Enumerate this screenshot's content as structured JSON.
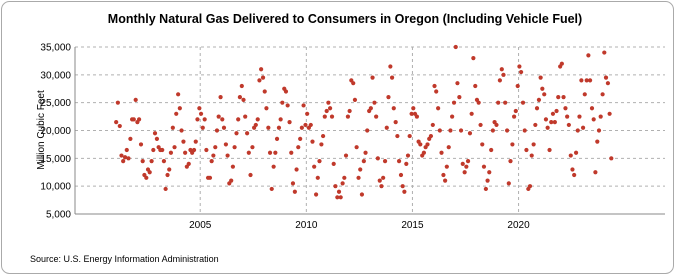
{
  "chart_data": {
    "type": "scatter",
    "title": "Monthly Natural Gas Delivered to Consumers in Oregon (Including Vehicle Fuel)",
    "y_label": "Million Cubic Feet",
    "source": "Source: U.S. Energy Information Administration",
    "color": "#c0392b",
    "grid": true,
    "xlim": [
      1999.1,
      2026.9
    ],
    "xticks": [
      2005,
      2010,
      2015,
      2020
    ],
    "ylim": [
      5000,
      35000
    ],
    "yticks": [
      {
        "value": 5000,
        "label": "5,000"
      },
      {
        "value": 10000,
        "label": "10,000"
      },
      {
        "value": 15000,
        "label": "15,000"
      },
      {
        "value": 20000,
        "label": "20,000"
      },
      {
        "value": 25000,
        "label": "25,000"
      },
      {
        "value": 30000,
        "label": "30,000"
      },
      {
        "value": 35000,
        "label": "35,000"
      }
    ],
    "x": [
      2001.04,
      2001.12,
      2001.21,
      2001.29,
      2001.37,
      2001.46,
      2001.54,
      2001.62,
      2001.71,
      2001.79,
      2001.87,
      2001.96,
      2002.04,
      2002.12,
      2002.21,
      2002.29,
      2002.37,
      2002.46,
      2002.54,
      2002.62,
      2002.71,
      2002.79,
      2002.87,
      2002.96,
      2003.04,
      2003.12,
      2003.21,
      2003.29,
      2003.37,
      2003.46,
      2003.54,
      2003.62,
      2003.71,
      2003.79,
      2003.87,
      2003.96,
      2004.04,
      2004.12,
      2004.21,
      2004.29,
      2004.37,
      2004.46,
      2004.54,
      2004.62,
      2004.71,
      2004.79,
      2004.87,
      2004.96,
      2005.04,
      2005.12,
      2005.21,
      2005.29,
      2005.37,
      2005.46,
      2005.54,
      2005.62,
      2005.71,
      2005.79,
      2005.87,
      2005.96,
      2006.04,
      2006.12,
      2006.21,
      2006.29,
      2006.37,
      2006.46,
      2006.54,
      2006.62,
      2006.71,
      2006.79,
      2006.87,
      2006.96,
      2007.04,
      2007.12,
      2007.21,
      2007.29,
      2007.37,
      2007.46,
      2007.54,
      2007.62,
      2007.71,
      2007.79,
      2007.87,
      2007.96,
      2008.04,
      2008.12,
      2008.21,
      2008.29,
      2008.37,
      2008.46,
      2008.54,
      2008.62,
      2008.71,
      2008.79,
      2008.87,
      2008.96,
      2009.04,
      2009.12,
      2009.21,
      2009.29,
      2009.37,
      2009.46,
      2009.54,
      2009.62,
      2009.71,
      2009.79,
      2009.87,
      2009.96,
      2010.04,
      2010.12,
      2010.21,
      2010.29,
      2010.37,
      2010.46,
      2010.54,
      2010.62,
      2010.71,
      2010.79,
      2010.87,
      2010.96,
      2011.04,
      2011.12,
      2011.21,
      2011.29,
      2011.37,
      2011.46,
      2011.54,
      2011.62,
      2011.71,
      2011.79,
      2011.87,
      2011.96,
      2012.04,
      2012.12,
      2012.21,
      2012.29,
      2012.37,
      2012.46,
      2012.54,
      2012.62,
      2012.71,
      2012.79,
      2012.87,
      2012.96,
      2013.04,
      2013.12,
      2013.21,
      2013.29,
      2013.37,
      2013.46,
      2013.54,
      2013.62,
      2013.71,
      2013.79,
      2013.87,
      2013.96,
      2014.04,
      2014.12,
      2014.21,
      2014.29,
      2014.37,
      2014.46,
      2014.54,
      2014.62,
      2014.71,
      2014.79,
      2014.87,
      2014.96,
      2015.04,
      2015.12,
      2015.21,
      2015.29,
      2015.37,
      2015.46,
      2015.54,
      2015.62,
      2015.71,
      2015.79,
      2015.87,
      2015.96,
      2016.04,
      2016.12,
      2016.21,
      2016.29,
      2016.37,
      2016.46,
      2016.54,
      2016.62,
      2016.71,
      2016.79,
      2016.87,
      2016.96,
      2017.04,
      2017.12,
      2017.21,
      2017.29,
      2017.37,
      2017.46,
      2017.54,
      2017.62,
      2017.71,
      2017.79,
      2017.87,
      2017.96,
      2018.04,
      2018.12,
      2018.21,
      2018.29,
      2018.37,
      2018.46,
      2018.54,
      2018.62,
      2018.71,
      2018.79,
      2018.87,
      2018.96,
      2019.04,
      2019.12,
      2019.21,
      2019.29,
      2019.37,
      2019.46,
      2019.54,
      2019.62,
      2019.71,
      2019.79,
      2019.87,
      2019.96,
      2020.04,
      2020.12,
      2020.21,
      2020.29,
      2020.37,
      2020.46,
      2020.54,
      2020.62,
      2020.71,
      2020.79,
      2020.87,
      2020.96,
      2021.04,
      2021.12,
      2021.21,
      2021.29,
      2021.37,
      2021.46,
      2021.54,
      2021.62,
      2021.71,
      2021.79,
      2021.87,
      2021.96,
      2022.04,
      2022.12,
      2022.21,
      2022.29,
      2022.37,
      2022.46,
      2022.54,
      2022.62,
      2022.71,
      2022.79,
      2022.87,
      2022.96,
      2023.04,
      2023.12,
      2023.21,
      2023.29,
      2023.37,
      2023.46,
      2023.54,
      2023.62,
      2023.71,
      2023.79,
      2023.87,
      2023.96,
      2024.04,
      2024.12,
      2024.21,
      2024.29,
      2024.37
    ],
    "values": [
      21500,
      25000,
      20800,
      15500,
      14500,
      15200,
      16500,
      15000,
      18500,
      22000,
      22000,
      25500,
      21500,
      22000,
      17500,
      14500,
      12000,
      11500,
      13000,
      12500,
      14500,
      16500,
      19500,
      18500,
      17000,
      16500,
      16500,
      14500,
      9500,
      12000,
      13000,
      16000,
      20500,
      17000,
      23000,
      26500,
      24000,
      20000,
      18000,
      16000,
      13500,
      14000,
      16500,
      16000,
      16500,
      18000,
      22000,
      24000,
      23000,
      20500,
      22000,
      16500,
      11500,
      11500,
      14500,
      15500,
      17000,
      20000,
      22500,
      26000,
      22000,
      20500,
      17500,
      15500,
      10500,
      11000,
      13500,
      17000,
      19500,
      22000,
      26000,
      28000,
      25500,
      22500,
      19500,
      16000,
      12000,
      17000,
      20500,
      21000,
      22000,
      29000,
      31000,
      29500,
      27000,
      24000,
      20500,
      16000,
      9500,
      13500,
      16000,
      18500,
      20500,
      22000,
      25000,
      27500,
      27000,
      24500,
      21500,
      16000,
      10500,
      9000,
      13000,
      17000,
      18500,
      20500,
      24500,
      21000,
      23000,
      20500,
      21000,
      18000,
      13500,
      8500,
      11500,
      14500,
      17500,
      19000,
      22500,
      23500,
      25000,
      24000,
      22500,
      14000,
      10000,
      8000,
      9000,
      8000,
      10500,
      11500,
      15500,
      22500,
      23500,
      29000,
      28500,
      25500,
      17000,
      11500,
      13000,
      8500,
      14500,
      16000,
      20000,
      23500,
      24000,
      29500,
      25000,
      22500,
      15000,
      11000,
      10000,
      11500,
      14500,
      20500,
      26000,
      31500,
      29500,
      24000,
      21500,
      19000,
      14500,
      12000,
      10000,
      9000,
      14000,
      15500,
      19000,
      23000,
      24000,
      23000,
      22500,
      18000,
      17500,
      15500,
      16000,
      17000,
      17500,
      18500,
      19000,
      21000,
      28000,
      27000,
      24000,
      20000,
      16000,
      12000,
      11000,
      13500,
      17000,
      20000,
      22500,
      25000,
      35000,
      28500,
      26000,
      20000,
      14000,
      12500,
      13500,
      14500,
      19500,
      23000,
      33000,
      28000,
      25500,
      25000,
      21000,
      17500,
      13500,
      9500,
      11000,
      12500,
      16500,
      20000,
      21500,
      21000,
      25000,
      29000,
      31000,
      30000,
      25000,
      20000,
      10500,
      14500,
      17500,
      22500,
      23500,
      28000,
      31500,
      30500,
      25000,
      20000,
      16500,
      9500,
      10000,
      15500,
      17500,
      21000,
      24000,
      25500,
      29500,
      27500,
      26500,
      22000,
      20500,
      16500,
      21500,
      23000,
      21500,
      23500,
      26000,
      31500,
      32000,
      26000,
      24000,
      22500,
      21000,
      15500,
      13000,
      12000,
      16000,
      20000,
      22500,
      29000,
      20500,
      26500,
      29000,
      33500,
      29000,
      24000,
      22000,
      12500,
      18000,
      20000,
      22500,
      26500,
      34000,
      29500,
      28500,
      23000,
      15000
    ]
  }
}
